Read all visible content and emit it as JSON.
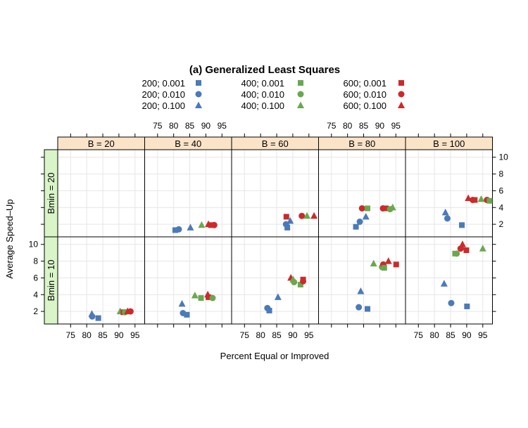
{
  "chart_data": {
    "type": "scatter",
    "title": "(a) Generalized Least Squares",
    "xlabel": "Percent Equal or Improved",
    "ylabel": "Average Speed–Up",
    "xlim": [
      71,
      98
    ],
    "ylim": [
      0.5,
      10.9
    ],
    "x_ticks": [
      "75",
      "80",
      "85",
      "90",
      "95"
    ],
    "y_ticks": [
      "2",
      "4",
      "6",
      "8",
      "10"
    ],
    "grid": true,
    "legend_position": "top",
    "colors": {
      "200": "#4a7ab9",
      "400": "#6aa84f",
      "600": "#cc2a2a"
    },
    "marker_names": {
      "0.001": "square",
      "0.010": "circle",
      "0.100": "triangle"
    },
    "column_strips": [
      "B =  20",
      "B =  40",
      "B =  60",
      "B =  80",
      "B = 100"
    ],
    "row_strips": [
      "Bmin = 20",
      "Bmin = 10"
    ],
    "legend": [
      {
        "label": "200; 0.001",
        "group": "200",
        "marker": "square"
      },
      {
        "label": "200; 0.010",
        "group": "200",
        "marker": "circle"
      },
      {
        "label": "200; 0.100",
        "group": "200",
        "marker": "triangle"
      },
      {
        "label": "400; 0.001",
        "group": "400",
        "marker": "square"
      },
      {
        "label": "400; 0.010",
        "group": "400",
        "marker": "circle"
      },
      {
        "label": "400; 0.100",
        "group": "400",
        "marker": "triangle"
      },
      {
        "label": "600; 0.001",
        "group": "600",
        "marker": "square"
      },
      {
        "label": "600; 0.010",
        "group": "600",
        "marker": "circle"
      },
      {
        "label": "600; 0.100",
        "group": "600",
        "marker": "triangle"
      }
    ],
    "panels": [
      {
        "B": 20,
        "Bmin": 20,
        "points": []
      },
      {
        "B": 40,
        "Bmin": 20,
        "points": [
          {
            "g": "200",
            "m": "square",
            "x": 80.5,
            "y": 1.3
          },
          {
            "g": "200",
            "m": "circle",
            "x": 81.6,
            "y": 1.4
          },
          {
            "g": "200",
            "m": "triangle",
            "x": 85.2,
            "y": 1.6
          },
          {
            "g": "400",
            "m": "triangle",
            "x": 88.7,
            "y": 1.9
          },
          {
            "g": "600",
            "m": "triangle",
            "x": 90.8,
            "y": 2.0
          },
          {
            "g": "600",
            "m": "square",
            "x": 91.6,
            "y": 1.9
          },
          {
            "g": "600",
            "m": "circle",
            "x": 92.6,
            "y": 1.9
          }
        ]
      },
      {
        "B": 60,
        "Bmin": 20,
        "points": [
          {
            "g": "600",
            "m": "square",
            "x": 88.0,
            "y": 2.9
          },
          {
            "g": "200",
            "m": "circle",
            "x": 87.9,
            "y": 2.0
          },
          {
            "g": "200",
            "m": "square",
            "x": 88.3,
            "y": 1.6
          },
          {
            "g": "200",
            "m": "triangle",
            "x": 89.2,
            "y": 2.4
          },
          {
            "g": "600",
            "m": "circle",
            "x": 92.8,
            "y": 3.0
          },
          {
            "g": "400",
            "m": "triangle",
            "x": 94.4,
            "y": 3.0
          },
          {
            "g": "600",
            "m": "triangle",
            "x": 96.6,
            "y": 3.0
          }
        ]
      },
      {
        "B": 80,
        "Bmin": 20,
        "points": [
          {
            "g": "200",
            "m": "square",
            "x": 82.6,
            "y": 1.7
          },
          {
            "g": "200",
            "m": "circle",
            "x": 83.8,
            "y": 2.3
          },
          {
            "g": "200",
            "m": "triangle",
            "x": 85.7,
            "y": 2.9
          },
          {
            "g": "600",
            "m": "circle",
            "x": 84.5,
            "y": 3.9
          },
          {
            "g": "400",
            "m": "square",
            "x": 86.2,
            "y": 3.9
          },
          {
            "g": "600",
            "m": "circle",
            "x": 91.0,
            "y": 3.9
          },
          {
            "g": "600",
            "m": "square",
            "x": 91.9,
            "y": 3.9
          },
          {
            "g": "400",
            "m": "circle",
            "x": 93.2,
            "y": 3.8
          },
          {
            "g": "400",
            "m": "triangle",
            "x": 94.0,
            "y": 4.0
          }
        ]
      },
      {
        "B": 100,
        "Bmin": 20,
        "points": [
          {
            "g": "200",
            "m": "triangle",
            "x": 83.4,
            "y": 3.4
          },
          {
            "g": "200",
            "m": "circle",
            "x": 84.0,
            "y": 2.7
          },
          {
            "g": "200",
            "m": "square",
            "x": 88.5,
            "y": 1.9
          },
          {
            "g": "600",
            "m": "triangle",
            "x": 90.5,
            "y": 5.1
          },
          {
            "g": "600",
            "m": "circle",
            "x": 91.9,
            "y": 4.9
          },
          {
            "g": "600",
            "m": "square",
            "x": 92.5,
            "y": 4.9
          },
          {
            "g": "400",
            "m": "triangle",
            "x": 94.5,
            "y": 5.0
          },
          {
            "g": "600",
            "m": "circle",
            "x": 96.3,
            "y": 4.9
          },
          {
            "g": "400",
            "m": "square",
            "x": 97.1,
            "y": 4.8
          }
        ]
      },
      {
        "B": 20,
        "Bmin": 10,
        "points": [
          {
            "g": "200",
            "m": "triangle",
            "x": 81.6,
            "y": 1.7
          },
          {
            "g": "200",
            "m": "circle",
            "x": 81.7,
            "y": 1.4
          },
          {
            "g": "200",
            "m": "square",
            "x": 83.6,
            "y": 1.2
          },
          {
            "g": "400",
            "m": "triangle",
            "x": 90.4,
            "y": 2.0
          },
          {
            "g": "600",
            "m": "square",
            "x": 91.4,
            "y": 1.9
          },
          {
            "g": "400",
            "m": "circle",
            "x": 91.9,
            "y": 1.9
          },
          {
            "g": "600",
            "m": "triangle",
            "x": 92.7,
            "y": 2.0
          },
          {
            "g": "600",
            "m": "circle",
            "x": 93.6,
            "y": 2.0
          }
        ]
      },
      {
        "B": 40,
        "Bmin": 10,
        "points": [
          {
            "g": "200",
            "m": "triangle",
            "x": 82.6,
            "y": 2.9
          },
          {
            "g": "200",
            "m": "circle",
            "x": 82.9,
            "y": 1.8
          },
          {
            "g": "200",
            "m": "square",
            "x": 84.1,
            "y": 1.6
          },
          {
            "g": "400",
            "m": "triangle",
            "x": 86.6,
            "y": 3.9
          },
          {
            "g": "400",
            "m": "square",
            "x": 88.5,
            "y": 3.6
          },
          {
            "g": "600",
            "m": "triangle",
            "x": 90.6,
            "y": 4.0
          },
          {
            "g": "600",
            "m": "square",
            "x": 90.8,
            "y": 3.7
          },
          {
            "g": "400",
            "m": "circle",
            "x": 92.1,
            "y": 3.6
          }
        ]
      },
      {
        "B": 60,
        "Bmin": 10,
        "points": [
          {
            "g": "200",
            "m": "circle",
            "x": 82.1,
            "y": 2.4
          },
          {
            "g": "200",
            "m": "square",
            "x": 82.7,
            "y": 2.1
          },
          {
            "g": "200",
            "m": "triangle",
            "x": 85.4,
            "y": 3.7
          },
          {
            "g": "600",
            "m": "triangle",
            "x": 89.4,
            "y": 6.0
          },
          {
            "g": "400",
            "m": "triangle",
            "x": 90.1,
            "y": 5.8
          },
          {
            "g": "400",
            "m": "circle",
            "x": 90.4,
            "y": 5.5
          },
          {
            "g": "400",
            "m": "square",
            "x": 92.4,
            "y": 5.2
          },
          {
            "g": "600",
            "m": "square",
            "x": 93.2,
            "y": 5.8
          },
          {
            "g": "600",
            "m": "circle",
            "x": 93.2,
            "y": 5.6
          }
        ]
      },
      {
        "B": 80,
        "Bmin": 10,
        "points": [
          {
            "g": "200",
            "m": "triangle",
            "x": 84.1,
            "y": 4.4
          },
          {
            "g": "200",
            "m": "circle",
            "x": 83.5,
            "y": 2.5
          },
          {
            "g": "200",
            "m": "square",
            "x": 86.2,
            "y": 2.3
          },
          {
            "g": "400",
            "m": "triangle",
            "x": 88.1,
            "y": 7.7
          },
          {
            "g": "400",
            "m": "circle",
            "x": 90.7,
            "y": 7.3
          },
          {
            "g": "600",
            "m": "circle",
            "x": 91.1,
            "y": 7.6
          },
          {
            "g": "400",
            "m": "square",
            "x": 91.4,
            "y": 7.2
          },
          {
            "g": "600",
            "m": "triangle",
            "x": 92.7,
            "y": 8.0
          },
          {
            "g": "600",
            "m": "square",
            "x": 95.1,
            "y": 7.6
          }
        ]
      },
      {
        "B": 100,
        "Bmin": 10,
        "points": [
          {
            "g": "200",
            "m": "triangle",
            "x": 83.0,
            "y": 5.3
          },
          {
            "g": "200",
            "m": "circle",
            "x": 85.2,
            "y": 3.0
          },
          {
            "g": "200",
            "m": "square",
            "x": 90.1,
            "y": 2.6
          },
          {
            "g": "400",
            "m": "square",
            "x": 86.4,
            "y": 8.9
          },
          {
            "g": "400",
            "m": "circle",
            "x": 86.9,
            "y": 8.9
          },
          {
            "g": "600",
            "m": "circle",
            "x": 88.1,
            "y": 9.5
          },
          {
            "g": "600",
            "m": "triangle",
            "x": 88.7,
            "y": 10.0
          },
          {
            "g": "600",
            "m": "square",
            "x": 89.9,
            "y": 9.3
          },
          {
            "g": "400",
            "m": "triangle",
            "x": 95.0,
            "y": 9.5
          }
        ]
      }
    ]
  }
}
